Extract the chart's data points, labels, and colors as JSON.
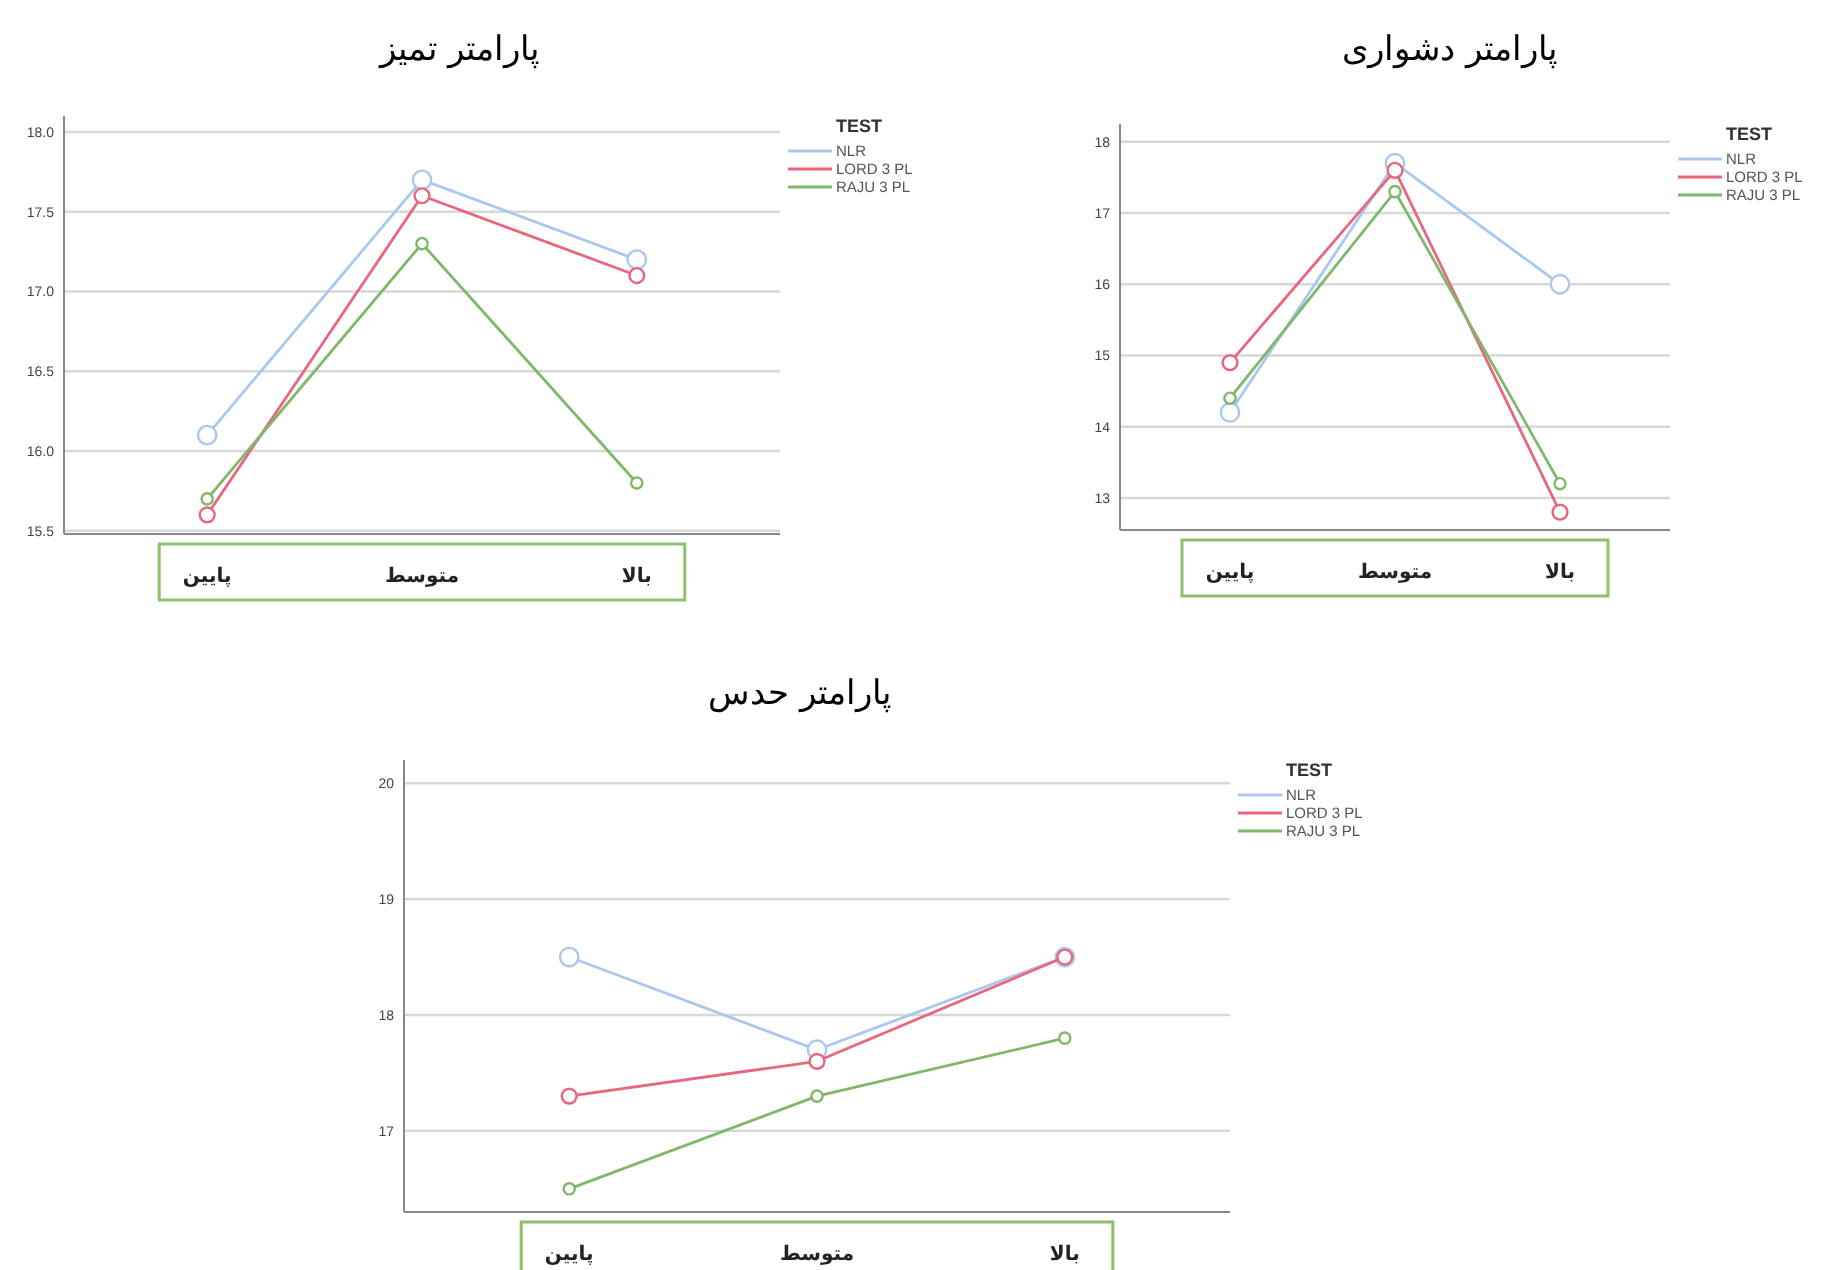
{
  "chart_data": [
    {
      "type": "line",
      "title": "پارامتر تمیز",
      "categories": [
        "پایین",
        "متوسط",
        "بالا"
      ],
      "legend_title": "TEST",
      "legend": "top right",
      "grid": "y",
      "marker": "circle",
      "ylim": [
        15.48,
        18.1
      ],
      "yticks": [
        15.5,
        {
          "value": 16,
          "label": "16.0"
        },
        16.5,
        {
          "value": 17,
          "label": "17.0"
        },
        17.5,
        {
          "value": 18,
          "label": "18.0"
        }
      ],
      "series": [
        {
          "name": "NLR",
          "color": "#a9c8ef",
          "values": [
            16.1,
            17.7,
            17.2
          ]
        },
        {
          "name": "LORD 3 PL",
          "color": "#e8677f",
          "values": [
            15.6,
            17.6,
            17.1
          ]
        },
        {
          "name": "RAJU 3 PL",
          "color": "#7fb86a",
          "values": [
            15.7,
            17.3,
            15.8
          ]
        }
      ]
    },
    {
      "type": "line",
      "title": "پارامتر دشواری",
      "categories": [
        "پایین",
        "متوسط",
        "بالا"
      ],
      "legend_title": "TEST",
      "legend": "top right",
      "grid": "y",
      "marker": "circle",
      "ylim": [
        12.55,
        18.25
      ],
      "yticks": [
        13,
        14,
        15,
        16,
        17,
        18
      ],
      "series": [
        {
          "name": "NLR",
          "color": "#a9c8ef",
          "values": [
            14.2,
            17.7,
            16.0
          ]
        },
        {
          "name": "LORD 3 PL",
          "color": "#e8677f",
          "values": [
            14.9,
            17.6,
            12.8
          ]
        },
        {
          "name": "RAJU 3 PL",
          "color": "#7fb86a",
          "values": [
            14.4,
            17.3,
            13.2
          ]
        }
      ]
    },
    {
      "type": "line",
      "title": "پارامتر حدس",
      "categories": [
        "پایین",
        "متوسط",
        "بالا"
      ],
      "legend_title": "TEST",
      "legend": "top right",
      "grid": "y",
      "marker": "circle",
      "ylim": [
        16.3,
        20.2
      ],
      "yticks": [
        17,
        18,
        19,
        20
      ],
      "series": [
        {
          "name": "NLR",
          "color": "#a9c8ef",
          "values": [
            18.5,
            17.7,
            18.5
          ]
        },
        {
          "name": "LORD 3 PL",
          "color": "#e8677f",
          "values": [
            17.3,
            17.6,
            18.5
          ]
        },
        {
          "name": "RAJU 3 PL",
          "color": "#7fb86a",
          "values": [
            16.5,
            17.3,
            17.8
          ]
        }
      ]
    }
  ]
}
